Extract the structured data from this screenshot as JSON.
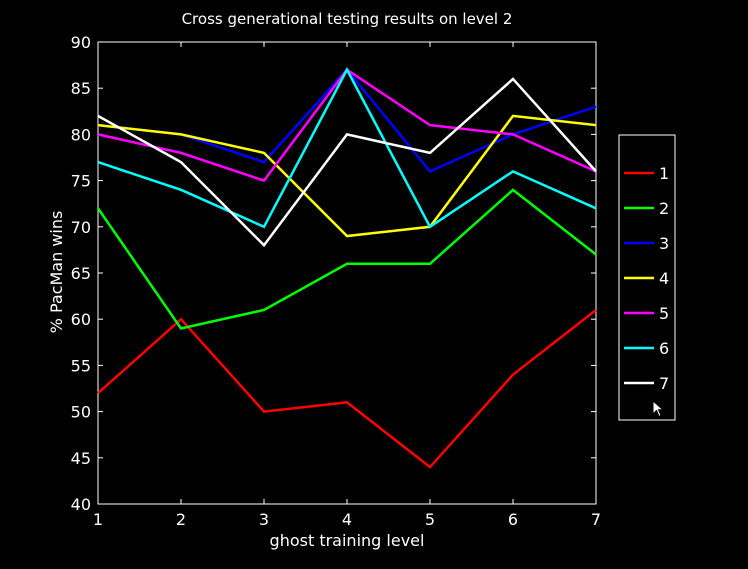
{
  "chart_data": {
    "type": "line",
    "title": "Cross generational testing results on level 2",
    "xlabel": "ghost training level",
    "ylabel": "% PacMan wins",
    "x": [
      1,
      2,
      3,
      4,
      5,
      6,
      7
    ],
    "xlim": [
      1,
      7
    ],
    "ylim": [
      40,
      90
    ],
    "yticks": [
      40,
      45,
      50,
      55,
      60,
      65,
      70,
      75,
      80,
      85,
      90
    ],
    "grid": false,
    "legend_position": "right, outside plot",
    "background": "#000000",
    "axis_color": "#ffffff",
    "series": [
      {
        "name": "1",
        "color": "#ff0000",
        "values": [
          52,
          60,
          50,
          51,
          44,
          54,
          61
        ]
      },
      {
        "name": "2",
        "color": "#00ff00",
        "values": [
          72,
          59,
          61,
          66,
          66,
          74,
          67
        ]
      },
      {
        "name": "3",
        "color": "#0000ff",
        "values": [
          81,
          80,
          77,
          87,
          76,
          80,
          83
        ]
      },
      {
        "name": "4",
        "color": "#ffff00",
        "values": [
          81,
          80,
          78,
          69,
          70,
          82,
          81
        ]
      },
      {
        "name": "5",
        "color": "#ff00ff",
        "values": [
          80,
          78,
          75,
          87,
          81,
          80,
          76
        ]
      },
      {
        "name": "6",
        "color": "#00ffff",
        "values": [
          77,
          74,
          70,
          87,
          70,
          76,
          72
        ]
      },
      {
        "name": "7",
        "color": "#ffffff",
        "values": [
          82,
          77,
          68,
          80,
          78,
          86,
          76
        ]
      }
    ]
  },
  "icons": {
    "cursor": "mouse-pointer-icon"
  }
}
